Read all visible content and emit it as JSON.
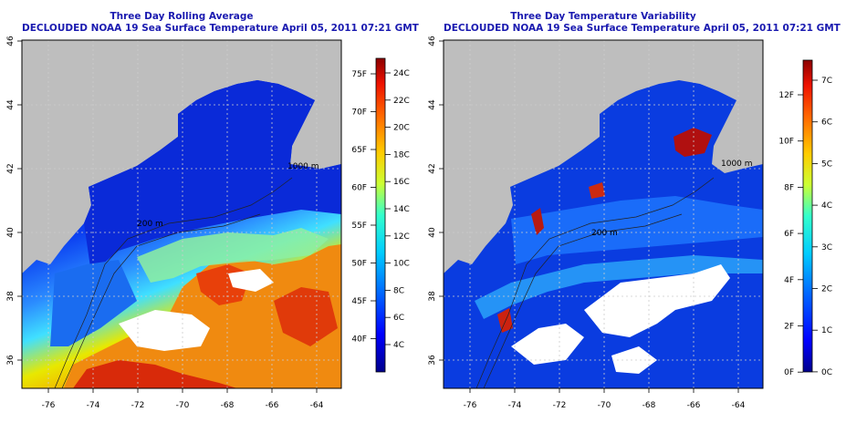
{
  "left_panel": {
    "title_line1": "Three Day Rolling Average",
    "title_line2": "DECLOUDED NOAA 19 Sea Surface Temperature April 05, 2011 07:21 GMT",
    "fahrenheit_ticks": [
      "75F",
      "70F",
      "65F",
      "60F",
      "55F",
      "50F",
      "45F",
      "40F"
    ],
    "celsius_ticks": [
      "24C",
      "22C",
      "20C",
      "18C",
      "16C",
      "14C",
      "12C",
      "10C",
      "8C",
      "6C",
      "4C"
    ]
  },
  "right_panel": {
    "title_line1": "Three Day Temperature Variability",
    "title_line2": "DECLOUDED NOAA 19 Sea Surface Temperature April 05, 2011 07:21 GMT",
    "fahrenheit_ticks": [
      "12F",
      "10F",
      "8F",
      "6F",
      "4F",
      "2F",
      "0F"
    ],
    "celsius_ticks": [
      "7C",
      "6C",
      "5C",
      "4C",
      "3C",
      "2C",
      "1C",
      "0C"
    ]
  },
  "map_axes": {
    "longitude_ticks": [
      "-76",
      "-74",
      "-72",
      "-70",
      "-68",
      "-66",
      "-64"
    ],
    "latitude_ticks": [
      "46",
      "44",
      "42",
      "40",
      "38",
      "36"
    ]
  },
  "contour_labels": [
    "200 m",
    "1000 m",
    "200 m",
    "1000 m"
  ],
  "colors": {
    "title": "#1a1ab0",
    "land": "#bebebe",
    "cold_water": "#0a2fd8",
    "warm_water": "#e0300a",
    "colorbar_top": "#8b0000",
    "colorbar_bottom": "#00008b"
  }
}
